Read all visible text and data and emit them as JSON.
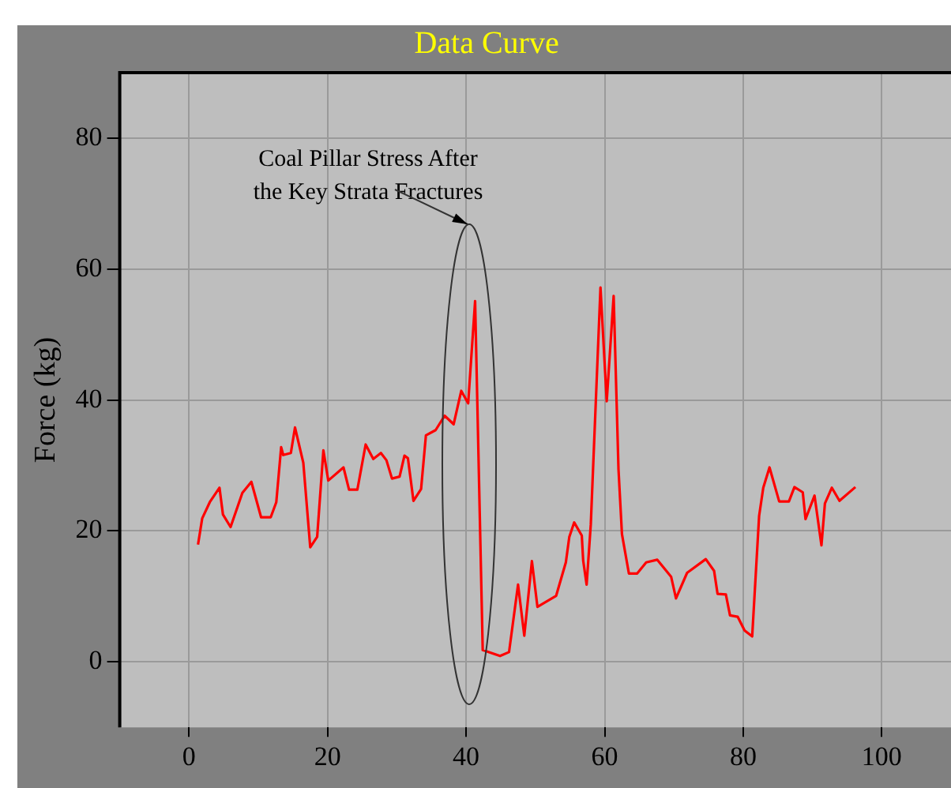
{
  "chart_data": {
    "type": "line",
    "title": "Data Curve",
    "ylabel": "Force (kg)",
    "xlim": [
      -10,
      110
    ],
    "xticks": [
      0,
      20,
      40,
      60,
      80,
      100
    ],
    "ylim": [
      -10,
      90
    ],
    "yticks": [
      0,
      20,
      40,
      60,
      80
    ],
    "grid": true,
    "legend": false,
    "marker": "none",
    "line_style": "solid",
    "annotations": [
      "Coal Pillar Stress After\nthe Key Strata Fractures"
    ],
    "series": [
      {
        "color": "#ff0000",
        "x": [
          1.3,
          1.9,
          3,
          4.4,
          4.9,
          6,
          7.7,
          9,
          10.4,
          11.8,
          12.6,
          13.3,
          13.6,
          14.7,
          15.3,
          16.5,
          17.5,
          18.5,
          19.4,
          20.1,
          22.3,
          23.1,
          24.3,
          25.5,
          26.6,
          27.7,
          28.5,
          29.3,
          30.4,
          31.1,
          31.6,
          32.4,
          33.5,
          34.2,
          35.6,
          36.9,
          38.2,
          39.3,
          40.3,
          41.3,
          42.4,
          44.9,
          46.2,
          47.5,
          48.4,
          49.5,
          50.3,
          53,
          54.4,
          54.9,
          55.6,
          56.7,
          56.9,
          57.4,
          58,
          59.4,
          60.3,
          61.3,
          62,
          62.5,
          63.5,
          64.7,
          66,
          67.6,
          69.6,
          70.3,
          71.9,
          74.6,
          75.8,
          76.3,
          77.5,
          78.1,
          79.2,
          80.2,
          81.3,
          82.3,
          82.9,
          83.8,
          85.2,
          86.6,
          87.4,
          88.6,
          89,
          90.3,
          91.3,
          91.8,
          92.8,
          93.9,
          96.2
        ],
        "values": [
          17.9,
          21.9,
          24.4,
          26.6,
          22.5,
          20.6,
          25.8,
          27.5,
          22.1,
          22.1,
          24.4,
          32.8,
          31.6,
          31.9,
          35.8,
          30.4,
          17.5,
          19.1,
          32.3,
          27.7,
          29.7,
          26.3,
          26.3,
          33.2,
          31,
          31.9,
          30.8,
          28,
          28.3,
          31.5,
          31.1,
          24.6,
          26.4,
          34.6,
          35.4,
          37.6,
          36.3,
          41.4,
          39.5,
          55.1,
          1.8,
          0.9,
          1.5,
          11.8,
          4,
          15.4,
          8.4,
          10.1,
          15.2,
          19.1,
          21.3,
          19.3,
          15.5,
          11.8,
          21,
          57.2,
          39.8,
          55.9,
          29.4,
          19.5,
          13.5,
          13.5,
          15.2,
          15.6,
          13,
          9.7,
          13.6,
          15.7,
          13.9,
          10.4,
          10.3,
          7.1,
          6.9,
          4.8,
          3.9,
          22.3,
          26.6,
          29.7,
          24.5,
          24.5,
          26.7,
          25.9,
          21.8,
          25.4,
          17.8,
          24.2,
          26.6,
          24.6,
          26.7
        ]
      }
    ]
  }
}
